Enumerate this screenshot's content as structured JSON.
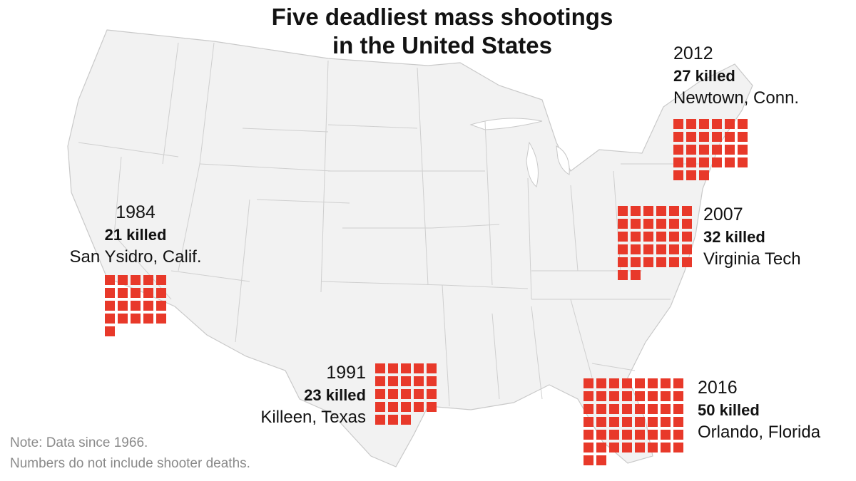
{
  "title": {
    "line1": "Five deadliest mass shootings",
    "line2": "in the United States"
  },
  "events": [
    {
      "key": "newtown",
      "year": "2012",
      "killed_label": "27 killed",
      "place": "Newtown, Conn.",
      "killed": 27
    },
    {
      "key": "virginia",
      "year": "2007",
      "killed_label": "32 killed",
      "place": "Virginia Tech",
      "killed": 32
    },
    {
      "key": "sanysidro",
      "year": "1984",
      "killed_label": "21 killed",
      "place": "San Ysidro, Calif.",
      "killed": 21
    },
    {
      "key": "killeen",
      "year": "1991",
      "killed_label": "23 killed",
      "place": "Killeen, Texas",
      "killed": 23
    },
    {
      "key": "orlando",
      "year": "2016",
      "killed_label": "50 killed",
      "place": "Orlando, Florida",
      "killed": 50
    }
  ],
  "note": {
    "line1": "Note: Data since 1966.",
    "line2": "Numbers do not include shooter deaths."
  },
  "colors": {
    "square": "#e8392a",
    "state_fill": "#f2f2f2",
    "state_border": "#c9c9c9"
  }
}
